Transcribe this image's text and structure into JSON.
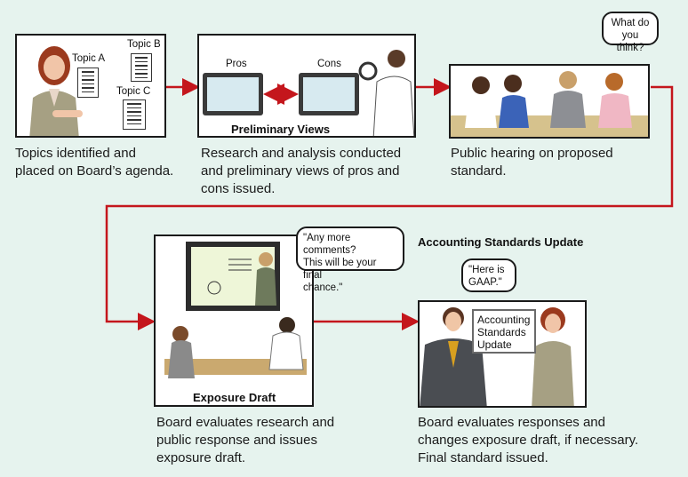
{
  "steps": [
    {
      "caption": "Topics identified and\nplaced on Board’s agenda."
    },
    {
      "caption": "Research and analysis conducted\nand preliminary views of pros and\ncons issued.",
      "panel_label": "Preliminary Views",
      "pros": "Pros",
      "cons": "Cons"
    },
    {
      "caption": "Public hearing on proposed\nstandard.",
      "bubble": "What do\nyou think?"
    },
    {
      "caption": "Board evaluates research and\npublic response and issues\nexposure draft.",
      "panel_label": "Exposure Draft",
      "bubble": "\"Any more comments?\nThis will be your final\nchance.\""
    },
    {
      "caption": "Board evaluates responses and\nchanges exposure draft, if necessary.\nFinal standard issued.",
      "bubble": "\"Here is\nGAAP.\"",
      "board_text": "Accounting\nStandards\nUpdate"
    }
  ],
  "topics": [
    "Topic A",
    "Topic B",
    "Topic C"
  ],
  "update_heading": "Accounting Standards Update",
  "colors": {
    "arrow": "#c4161c",
    "background": "#e6f3ee",
    "panel_border": "#1a1a1a"
  }
}
